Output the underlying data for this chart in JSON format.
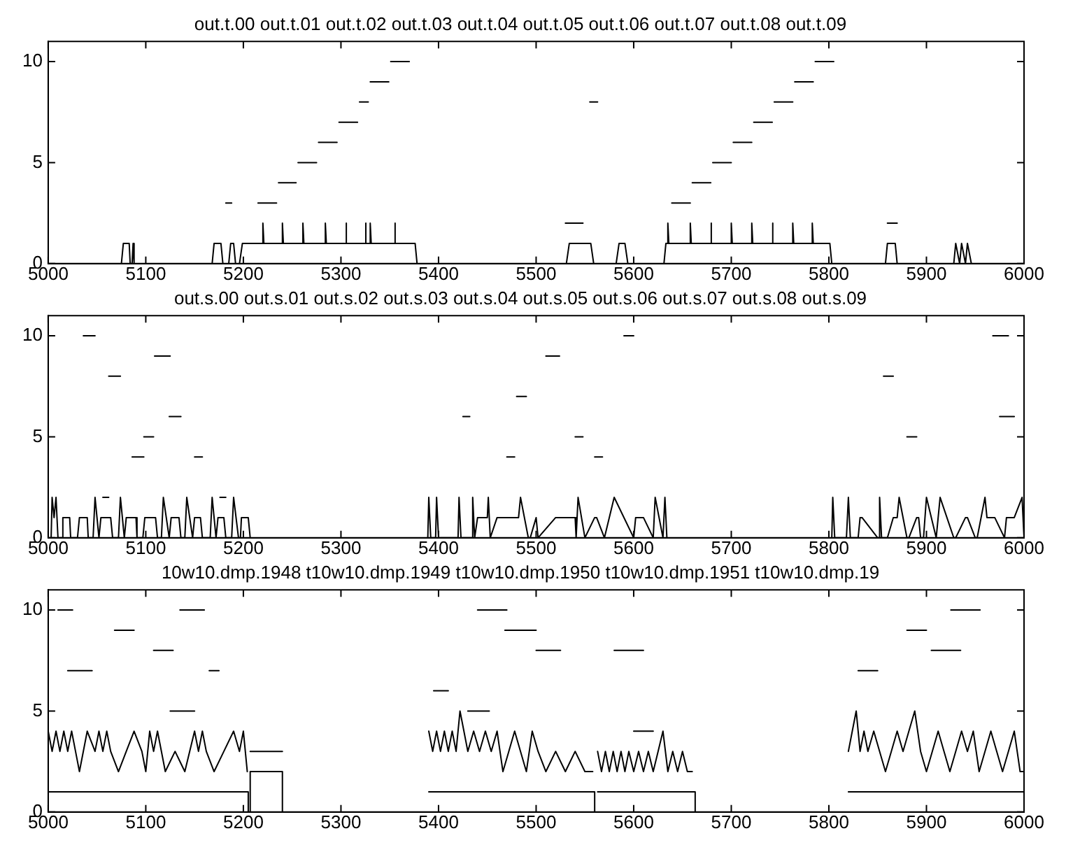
{
  "chart_data": [
    {
      "type": "line",
      "title": "out.t.00 out.t.01 out.t.02 out.t.03 out.t.04 out.t.05 out.t.06 out.t.07 out.t.08 out.t.09",
      "xlim": [
        5000,
        6000
      ],
      "xticks": [
        5000,
        5100,
        5200,
        5300,
        5400,
        5500,
        5600,
        5700,
        5800,
        5900,
        6000
      ],
      "ylim": [
        0,
        11
      ],
      "yticks": [
        0,
        5,
        10
      ],
      "grid": false,
      "marker": "none",
      "line_style": "solid",
      "series": [
        {
          "color": "#000000",
          "x": [
            5075,
            5077,
            5083,
            5084,
            5086,
            5087,
            5088,
            null,
            5168,
            5170,
            5177,
            5179,
            null,
            5185,
            5187,
            5190,
            5192,
            null,
            5196,
            5199,
            5210,
            5212,
            5220,
            5220,
            5221,
            5240,
            5240,
            5241,
            5261,
            5261,
            5262,
            5284,
            5284,
            5285,
            5305,
            5305,
            5306,
            5325,
            5325,
            5326,
            5330,
            5330,
            5331,
            5355,
            5355,
            5356,
            5376,
            5378,
            null,
            5531,
            5534,
            5556,
            5559,
            null,
            5582,
            5585,
            5591,
            5594,
            null,
            5631,
            5633,
            5635,
            5635,
            5636,
            5658,
            5658,
            5659,
            5679,
            5679,
            5680,
            5700,
            5700,
            5701,
            5721,
            5721,
            5722,
            5742,
            5742,
            5743,
            5763,
            5763,
            5764,
            5783,
            5783,
            5784,
            5801,
            5803,
            null,
            5858,
            5860,
            5868,
            5870,
            null,
            5928,
            5930,
            5934,
            5936,
            5940,
            5942,
            5946
          ],
          "values": [
            0,
            1,
            1,
            0,
            0,
            1,
            0,
            null,
            0,
            1,
            1,
            0,
            null,
            0,
            1,
            1,
            0,
            null,
            0,
            1,
            1,
            1,
            1,
            2,
            1,
            1,
            2,
            1,
            1,
            2,
            1,
            1,
            2,
            1,
            1,
            2,
            1,
            1,
            2,
            1,
            1,
            2,
            1,
            1,
            2,
            1,
            1,
            0,
            null,
            0,
            1,
            1,
            0,
            null,
            0,
            1,
            1,
            0,
            null,
            0,
            1,
            1,
            2,
            1,
            1,
            2,
            1,
            1,
            2,
            1,
            1,
            2,
            1,
            1,
            2,
            1,
            1,
            2,
            1,
            1,
            2,
            1,
            1,
            2,
            1,
            1,
            0,
            null,
            0,
            1,
            1,
            0,
            null,
            0,
            1,
            0,
            1,
            0,
            1,
            0
          ]
        },
        {
          "color": "#000000",
          "x": [
            5182,
            5188,
            null,
            5215,
            5234,
            null,
            5236,
            5254,
            null,
            5256,
            5275,
            null,
            5277,
            5296,
            null,
            5298,
            5317,
            null,
            5319,
            5328,
            null,
            5330,
            5349,
            null,
            5351,
            5370,
            null,
            5530,
            5548,
            null,
            5555,
            5563,
            null,
            5639,
            5658,
            null,
            5660,
            5679,
            null,
            5681,
            5700,
            null,
            5702,
            5721,
            null,
            5723,
            5742,
            null,
            5744,
            5763,
            null,
            5765,
            5784,
            null,
            5786,
            5805,
            null,
            5860,
            5870
          ],
          "values": [
            3,
            3,
            null,
            3,
            3,
            null,
            4,
            4,
            null,
            5,
            5,
            null,
            6,
            6,
            null,
            7,
            7,
            null,
            8,
            8,
            null,
            9,
            9,
            null,
            10,
            10,
            null,
            2,
            2,
            null,
            8,
            8,
            null,
            3,
            3,
            null,
            4,
            4,
            null,
            5,
            5,
            null,
            6,
            6,
            null,
            7,
            7,
            null,
            8,
            8,
            null,
            9,
            9,
            null,
            10,
            10,
            null,
            2,
            2
          ]
        }
      ]
    },
    {
      "type": "line",
      "title": "out.s.00 out.s.01 out.s.02 out.s.03 out.s.04 out.s.05 out.s.06 out.s.07 out.s.08 out.s.09",
      "xlim": [
        5000,
        6000
      ],
      "xticks": [
        5000,
        5100,
        5200,
        5300,
        5400,
        5500,
        5600,
        5700,
        5800,
        5900,
        6000
      ],
      "ylim": [
        0,
        11
      ],
      "yticks": [
        0,
        5,
        10
      ],
      "grid": false,
      "marker": "none",
      "line_style": "solid",
      "series": [
        {
          "color": "#000000",
          "x": [
            5003,
            5004,
            5006,
            5008,
            5010,
            5014,
            5015,
            5022,
            5023,
            5030,
            5032,
            5040,
            5041,
            5046,
            5048,
            5052,
            5054,
            5064,
            5066,
            5072,
            5074,
            5078,
            5080,
            5090,
            5091,
            5097,
            5099,
            5110,
            5112,
            5116,
            5118,
            5124,
            5126,
            5134,
            5136,
            5140,
            5142,
            5148,
            5150,
            5156,
            5158,
            5166,
            5168,
            5172,
            5174,
            5180,
            5182,
            5188,
            5190,
            5195,
            5197,
            5198,
            5205,
            5207,
            null,
            5389,
            5390,
            5392,
            5397,
            5398,
            5400,
            5420,
            5421,
            5423,
            5434,
            5435,
            5437,
            5440,
            5450,
            5451,
            5453,
            5460,
            5480,
            5482,
            5484,
            5492,
            5494,
            5500,
            5502,
            5520,
            5540,
            5541,
            5543,
            5550,
            5560,
            5562,
            5570,
            5580,
            5600,
            5602,
            5610,
            5620,
            5622,
            5630,
            5632,
            5634,
            null,
            5803,
            5804,
            5806,
            5818,
            5820,
            5822,
            5830,
            5832,
            5834,
            5850,
            5851,
            5852,
            5854,
            5860,
            5866,
            5870,
            5872,
            5880,
            5882,
            5890,
            5892,
            5894,
            5897,
            5900,
            5910,
            5911,
            5912,
            5914,
            5928,
            5930,
            5940,
            5942,
            5950,
            5952,
            5960,
            5962,
            5970,
            5980,
            5981,
            5982,
            5990,
            5998,
            6000
          ],
          "values": [
            0,
            2,
            1,
            2,
            0,
            0,
            1,
            1,
            0,
            0,
            1,
            1,
            0,
            0,
            2,
            0,
            1,
            1,
            0,
            0,
            2,
            0,
            1,
            1,
            0,
            0,
            1,
            1,
            0,
            0,
            2,
            0,
            1,
            1,
            0,
            0,
            2,
            0,
            1,
            1,
            0,
            0,
            2,
            0,
            1,
            1,
            0,
            0,
            2,
            0,
            0,
            1,
            1,
            0,
            null,
            0,
            2,
            0,
            0,
            2,
            0,
            0,
            2,
            0,
            0,
            2,
            0,
            1,
            1,
            2,
            0,
            1,
            1,
            1,
            2,
            0,
            0,
            1,
            0,
            1,
            1,
            0,
            2,
            0,
            1,
            1,
            0,
            2,
            0,
            1,
            1,
            0,
            2,
            0,
            2,
            0,
            null,
            0,
            2,
            0,
            0,
            2,
            0,
            0,
            1,
            1,
            0,
            0,
            2,
            0,
            0,
            1,
            1,
            2,
            0,
            0,
            1,
            1,
            0,
            0,
            2,
            0,
            0,
            1,
            2,
            0,
            0,
            1,
            1,
            0,
            0,
            2,
            1,
            1,
            0,
            0,
            1,
            1,
            2,
            0
          ]
        },
        {
          "color": "#000000",
          "x": [
            5036,
            5048,
            null,
            5109,
            5125,
            null,
            5062,
            5074,
            null,
            5124,
            5136,
            null,
            5098,
            5108,
            null,
            5086,
            5098,
            null,
            5056,
            5062,
            null,
            5150,
            5158,
            null,
            5176,
            5182,
            null,
            5425,
            5432,
            null,
            5470,
            5478,
            null,
            5480,
            5490,
            null,
            5510,
            5524,
            null,
            5540,
            5548,
            null,
            5590,
            5600,
            null,
            5560,
            5568,
            null,
            5856,
            5866,
            null,
            5968,
            5984,
            null,
            5880,
            5890,
            null,
            5975,
            5990
          ],
          "values": [
            10,
            10,
            null,
            9,
            9,
            null,
            8,
            8,
            null,
            6,
            6,
            null,
            5,
            5,
            null,
            4,
            4,
            null,
            2,
            2,
            null,
            4,
            4,
            null,
            2,
            2,
            null,
            6,
            6,
            null,
            4,
            4,
            null,
            7,
            7,
            null,
            9,
            9,
            null,
            5,
            5,
            null,
            10,
            10,
            null,
            4,
            4,
            null,
            8,
            8,
            null,
            10,
            10,
            null,
            5,
            5,
            null,
            6,
            6
          ]
        }
      ]
    },
    {
      "type": "line",
      "title": "10w10.dmp.1948 t10w10.dmp.1949 t10w10.dmp.1950 t10w10.dmp.1951 t10w10.dmp.19",
      "xlim": [
        5000,
        6000
      ],
      "xticks": [
        5000,
        5100,
        5200,
        5300,
        5400,
        5500,
        5600,
        5700,
        5800,
        5900,
        6000
      ],
      "ylim": [
        0,
        11
      ],
      "yticks": [
        0,
        5,
        10
      ],
      "grid": false,
      "marker": "none",
      "line_style": "solid",
      "series": [
        {
          "color": "#000000",
          "x": [
            5000,
            5205,
            5205,
            null,
            5207,
            5207,
            5240,
            5240,
            null,
            5390,
            5560,
            5560,
            null,
            5563,
            5663,
            5663,
            null,
            5820,
            6000
          ],
          "values": [
            1,
            1,
            0,
            null,
            0,
            2,
            2,
            0,
            null,
            1,
            1,
            0,
            null,
            1,
            1,
            0,
            null,
            1,
            1
          ]
        },
        {
          "color": "#000000",
          "x": [
            5000,
            5004,
            5008,
            5012,
            5016,
            5020,
            5024,
            5028,
            5032,
            5040,
            5048,
            5052,
            5056,
            5060,
            5064,
            5072,
            5080,
            5088,
            5096,
            5100,
            5104,
            5108,
            5112,
            5120,
            5130,
            5140,
            5150,
            5154,
            5158,
            5162,
            5170,
            5180,
            5190,
            5196,
            5200,
            5204,
            null,
            5207,
            5240,
            null,
            5390,
            5394,
            5398,
            5402,
            5406,
            5410,
            5414,
            5418,
            5422,
            5426,
            5430,
            5436,
            5442,
            5448,
            5454,
            5460,
            5466,
            5472,
            5478,
            5484,
            5490,
            5496,
            5502,
            5510,
            5520,
            5530,
            5540,
            5550,
            5558,
            null,
            5563,
            5567,
            5571,
            5575,
            5579,
            5583,
            5587,
            5591,
            5595,
            5600,
            5605,
            5610,
            5615,
            5620,
            5625,
            5630,
            5635,
            5640,
            5645,
            5650,
            5655,
            5660,
            null,
            5820,
            5824,
            5828,
            5832,
            5836,
            5840,
            5846,
            5852,
            5858,
            5864,
            5870,
            5876,
            5882,
            5888,
            5894,
            5900,
            5906,
            5912,
            5918,
            5924,
            5930,
            5936,
            5942,
            5948,
            5954,
            5960,
            5966,
            5972,
            5978,
            5984,
            5990,
            5996,
            6000
          ],
          "values": [
            4,
            3,
            4,
            3,
            4,
            3,
            4,
            3,
            2,
            4,
            3,
            4,
            3,
            4,
            3,
            2,
            3,
            4,
            3,
            2,
            4,
            3,
            4,
            2,
            3,
            2,
            4,
            3,
            4,
            3,
            2,
            3,
            4,
            3,
            4,
            2,
            null,
            3,
            3,
            null,
            4,
            3,
            4,
            3,
            4,
            3,
            4,
            3,
            5,
            4,
            3,
            4,
            3,
            4,
            3,
            4,
            2,
            3,
            4,
            3,
            2,
            4,
            3,
            2,
            3,
            2,
            3,
            2,
            2,
            null,
            3,
            2,
            3,
            2,
            3,
            2,
            3,
            2,
            3,
            2,
            3,
            2,
            3,
            2,
            3,
            4,
            2,
            3,
            2,
            3,
            2,
            2,
            null,
            3,
            4,
            5,
            3,
            4,
            3,
            4,
            3,
            2,
            3,
            4,
            3,
            4,
            5,
            3,
            2,
            3,
            4,
            3,
            2,
            3,
            4,
            3,
            4,
            2,
            3,
            4,
            3,
            2,
            3,
            4,
            2,
            2
          ]
        },
        {
          "color": "#000000",
          "x": [
            5020,
            5045,
            null,
            5068,
            5088,
            null,
            5135,
            5160,
            null,
            5108,
            5128,
            null,
            5125,
            5150,
            null,
            5165,
            5175,
            null,
            5010,
            5025,
            null,
            5440,
            5470,
            null,
            5468,
            5500,
            null,
            5395,
            5410,
            null,
            5500,
            5525,
            null,
            5430,
            5452,
            null,
            5580,
            5610,
            null,
            5600,
            5620,
            null,
            5830,
            5850,
            null,
            5880,
            5900,
            null,
            5925,
            5955,
            null,
            5905,
            5935
          ],
          "values": [
            7,
            7,
            null,
            9,
            9,
            null,
            10,
            10,
            null,
            8,
            8,
            null,
            5,
            5,
            null,
            7,
            7,
            null,
            10,
            10,
            null,
            10,
            10,
            null,
            9,
            9,
            null,
            6,
            6,
            null,
            8,
            8,
            null,
            5,
            5,
            null,
            8,
            8,
            null,
            4,
            4,
            null,
            7,
            7,
            null,
            9,
            9,
            null,
            10,
            10,
            null,
            8,
            8
          ]
        }
      ]
    }
  ]
}
